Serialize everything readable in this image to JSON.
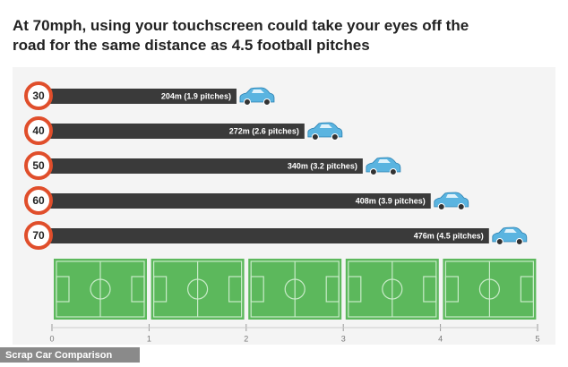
{
  "chart_data": {
    "type": "bar",
    "orientation": "horizontal",
    "title": "At 70mph, using your touchscreen could take your eyes off the road for the same distance as 4.5 football pitches",
    "categories": [
      "30",
      "40",
      "50",
      "60",
      "70"
    ],
    "values": [
      1.9,
      2.6,
      3.2,
      3.9,
      4.5
    ],
    "value_labels": [
      "204m (1.9 pitches)",
      "272m (2.6 pitches)",
      "340m (3.2 pitches)",
      "408m (3.9 pitches)",
      "476m (4.5 pitches)"
    ],
    "color": "#3a3a3a",
    "xlim": [
      0,
      5
    ],
    "xticks": [
      0,
      1,
      2,
      3,
      4,
      5
    ],
    "source": "Scrap Car Comparison"
  }
}
